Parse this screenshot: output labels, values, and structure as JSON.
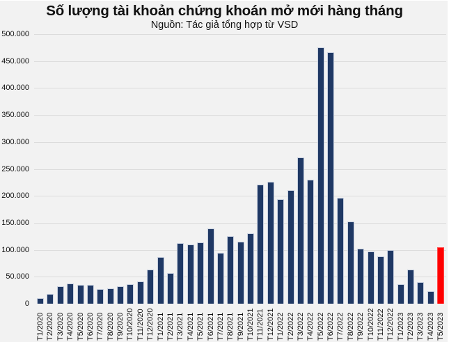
{
  "chart_data": {
    "type": "bar",
    "title": "Số lượng tài khoản chứng khoán mở mới hàng tháng",
    "subtitle": "Nguồn: Tác giả tổng hợp từ VSD",
    "xlabel": "",
    "ylabel": "",
    "ylim": [
      0,
      500000
    ],
    "grid": true,
    "legend": "none",
    "yticks": [
      "0",
      "50.000",
      "100.000",
      "150.000",
      "200.000",
      "250.000",
      "300.000",
      "350.000",
      "400.000",
      "450.000",
      "500.000"
    ],
    "ytick_values": [
      0,
      50000,
      100000,
      150000,
      200000,
      250000,
      300000,
      350000,
      400000,
      450000,
      500000
    ],
    "categories": [
      "T1/2020",
      "T2/2020",
      "T3/2020",
      "T4/2020",
      "T5/2020",
      "T6/2020",
      "T7/2020",
      "T8/2020",
      "T9/2020",
      "T10/2020",
      "T11/2020",
      "T12/2020",
      "T1/2021",
      "T2/2021",
      "T3/2021",
      "T4/2021",
      "T5/2021",
      "T6/2021",
      "T7/2021",
      "T8/2021",
      "T9/2021",
      "T10/2021",
      "T11/2021",
      "T12/2021",
      "T1/2022",
      "T2/2022",
      "T3/2022",
      "T4/2022",
      "T5/2022",
      "T6/2022",
      "T7/2022",
      "T8/2022",
      "T9/2022",
      "T10/2022",
      "T11/2022",
      "T12/2022",
      "T1/2023",
      "T2/2023",
      "T3/2023",
      "T4/2023",
      "T5/2023"
    ],
    "values": [
      10000,
      18500,
      32000,
      37000,
      34500,
      35000,
      27500,
      28500,
      32000,
      36500,
      41000,
      63000,
      86500,
      57500,
      113000,
      110000,
      113500,
      140000,
      95000,
      126000,
      114500,
      130000,
      221000,
      226500,
      194000,
      211000,
      271000,
      229500,
      476000,
      466000,
      196000,
      152000,
      102000,
      97000,
      88500,
      99000,
      36000,
      64000,
      39500,
      23000,
      105000
    ],
    "colors": {
      "default_bar": "#1f3864",
      "highlight_bar": "#ff0000",
      "background": "#f2f2f2",
      "grid": "#dcdcdc"
    },
    "highlight_index": 40
  }
}
